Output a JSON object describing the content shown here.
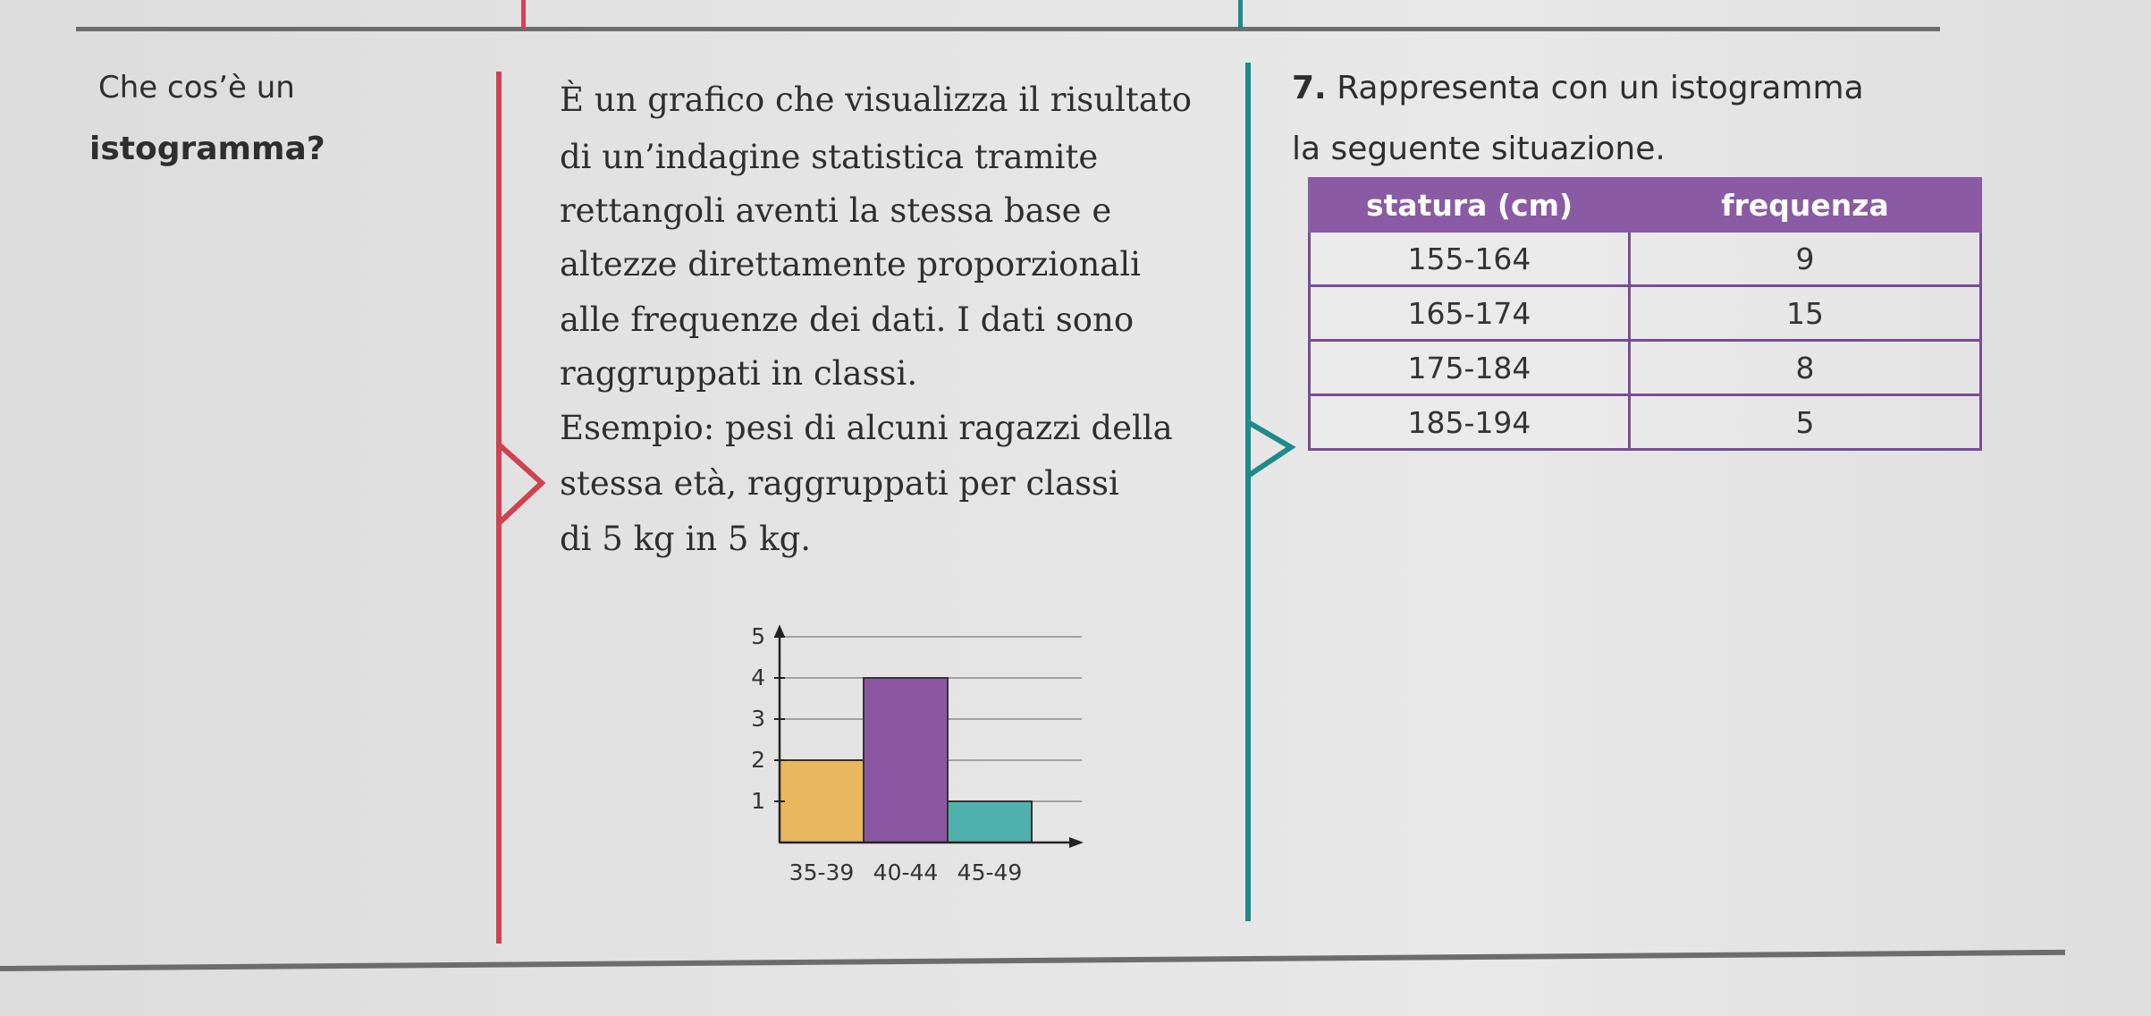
{
  "question": {
    "line1": "Che cos’è un",
    "line2": "istogramma?"
  },
  "definition": {
    "lines": [
      "È un grafico che visualizza il risultato",
      "di un’indagine statistica tramite",
      "rettangoli aventi la stessa base e",
      "altezze direttamente proporzionali",
      "alle frequenze dei dati. I dati sono",
      "raggruppati in classi.",
      "Esempio: pesi di alcuni ragazzi della",
      "stessa età, raggruppati per classi",
      "di 5 kg in 5 kg."
    ]
  },
  "exercise": {
    "number": "7.",
    "title": "Rappresenta con un istogramma",
    "line2": "la seguente situazione.",
    "table": {
      "headers": [
        "statura (cm)",
        "frequenza"
      ],
      "rows": [
        [
          "155-164",
          "9"
        ],
        [
          "165-174",
          "15"
        ],
        [
          "175-184",
          "8"
        ],
        [
          "185-194",
          "5"
        ]
      ]
    }
  },
  "colors": {
    "red_margin": "#d04250",
    "teal_margin": "#1f8a8a",
    "table_header": "#8a5aa4"
  },
  "chart_data": {
    "type": "bar",
    "categories": [
      "35-39",
      "40-44",
      "45-49"
    ],
    "values": [
      2,
      4,
      1
    ],
    "y_ticks": [
      "1",
      "2",
      "3",
      "4",
      "5"
    ],
    "ylim": [
      0,
      5
    ],
    "colors": [
      "#e8b75e",
      "#8b57a3",
      "#4fb1ae"
    ],
    "grid": true
  }
}
